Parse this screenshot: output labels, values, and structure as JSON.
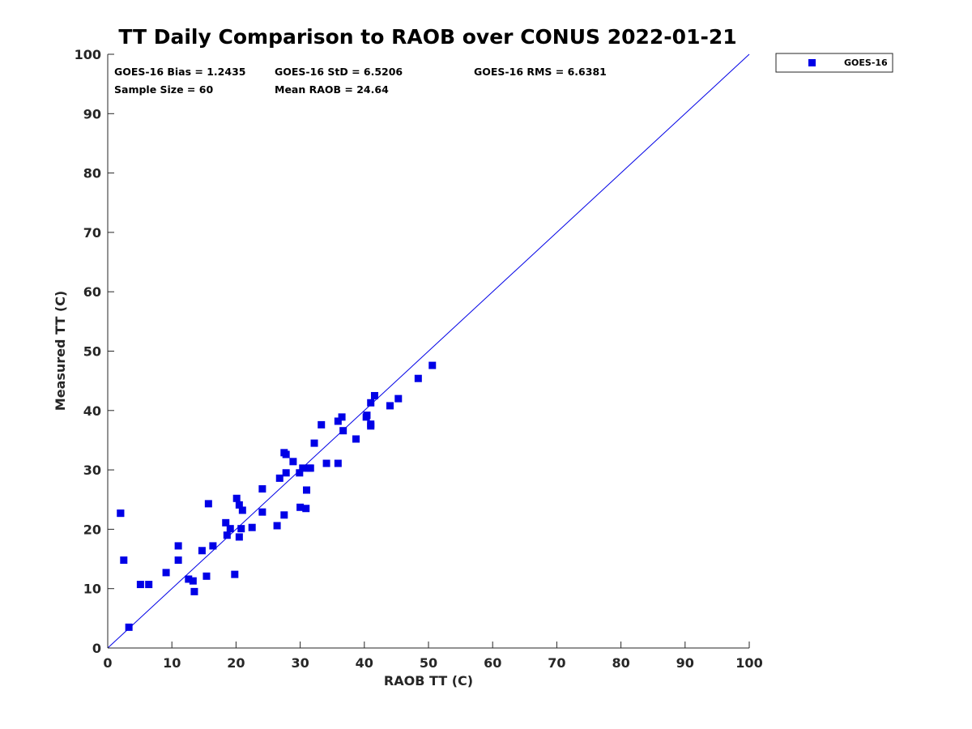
{
  "chart_data": {
    "type": "scatter",
    "title": "TT Daily Comparison to RAOB over CONUS 2022-01-21",
    "xlabel": "RAOB TT (C)",
    "ylabel": "Measured TT (C)",
    "xlim": [
      0,
      100
    ],
    "ylim": [
      0,
      100
    ],
    "xticks": [
      "0",
      "10",
      "20",
      "30",
      "40",
      "50",
      "60",
      "70",
      "80",
      "90",
      "100"
    ],
    "yticks": [
      "0",
      "10",
      "20",
      "30",
      "40",
      "50",
      "60",
      "70",
      "80",
      "90",
      "100"
    ],
    "grid": false,
    "legend_position": "outside-top-right",
    "reference_line": {
      "type": "one-to-one",
      "from": [
        0,
        0
      ],
      "to": [
        100,
        100
      ],
      "color": "#0000e6"
    },
    "stats": {
      "bias": "GOES-16 Bias = 1.2435",
      "std": "GOES-16 StD = 6.5206",
      "rms": "GOES-16 RMS = 6.6381",
      "sample_size": "Sample Size = 60",
      "mean_raob": "Mean RAOB = 24.64"
    },
    "series": [
      {
        "name": "GOES-16",
        "color": "#0000e6",
        "marker": "square",
        "points": [
          [
            2.0,
            22.7
          ],
          [
            2.5,
            14.8
          ],
          [
            3.3,
            3.5
          ],
          [
            5.1,
            10.7
          ],
          [
            6.4,
            10.7
          ],
          [
            9.1,
            12.7
          ],
          [
            11.0,
            17.2
          ],
          [
            11.0,
            14.8
          ],
          [
            12.6,
            11.6
          ],
          [
            13.3,
            11.3
          ],
          [
            13.5,
            9.5
          ],
          [
            14.7,
            16.4
          ],
          [
            15.4,
            12.1
          ],
          [
            15.7,
            24.3
          ],
          [
            16.4,
            17.2
          ],
          [
            18.4,
            21.1
          ],
          [
            18.6,
            19.0
          ],
          [
            19.1,
            20.1
          ],
          [
            19.8,
            12.4
          ],
          [
            20.1,
            25.2
          ],
          [
            20.5,
            18.7
          ],
          [
            20.5,
            24.1
          ],
          [
            20.8,
            20.1
          ],
          [
            21.0,
            23.2
          ],
          [
            22.5,
            20.3
          ],
          [
            24.1,
            26.8
          ],
          [
            24.1,
            22.9
          ],
          [
            26.4,
            20.6
          ],
          [
            26.8,
            28.6
          ],
          [
            27.5,
            22.4
          ],
          [
            27.5,
            32.9
          ],
          [
            27.8,
            32.6
          ],
          [
            27.8,
            29.5
          ],
          [
            28.9,
            31.4
          ],
          [
            29.9,
            29.5
          ],
          [
            30.0,
            23.7
          ],
          [
            30.4,
            30.3
          ],
          [
            30.9,
            23.5
          ],
          [
            31.0,
            26.6
          ],
          [
            31.4,
            30.3
          ],
          [
            31.6,
            30.3
          ],
          [
            32.2,
            34.5
          ],
          [
            33.3,
            37.6
          ],
          [
            34.1,
            31.1
          ],
          [
            35.9,
            31.1
          ],
          [
            35.9,
            38.2
          ],
          [
            36.5,
            38.9
          ],
          [
            36.7,
            36.6
          ],
          [
            38.7,
            35.2
          ],
          [
            40.3,
            38.9
          ],
          [
            40.4,
            39.2
          ],
          [
            41.0,
            41.3
          ],
          [
            41.0,
            37.4
          ],
          [
            41.0,
            37.7
          ],
          [
            41.6,
            42.5
          ],
          [
            44.0,
            40.8
          ],
          [
            45.3,
            42.0
          ],
          [
            48.4,
            45.4
          ],
          [
            50.6,
            47.6
          ],
          [
            2.0,
            22.7
          ]
        ]
      }
    ]
  }
}
